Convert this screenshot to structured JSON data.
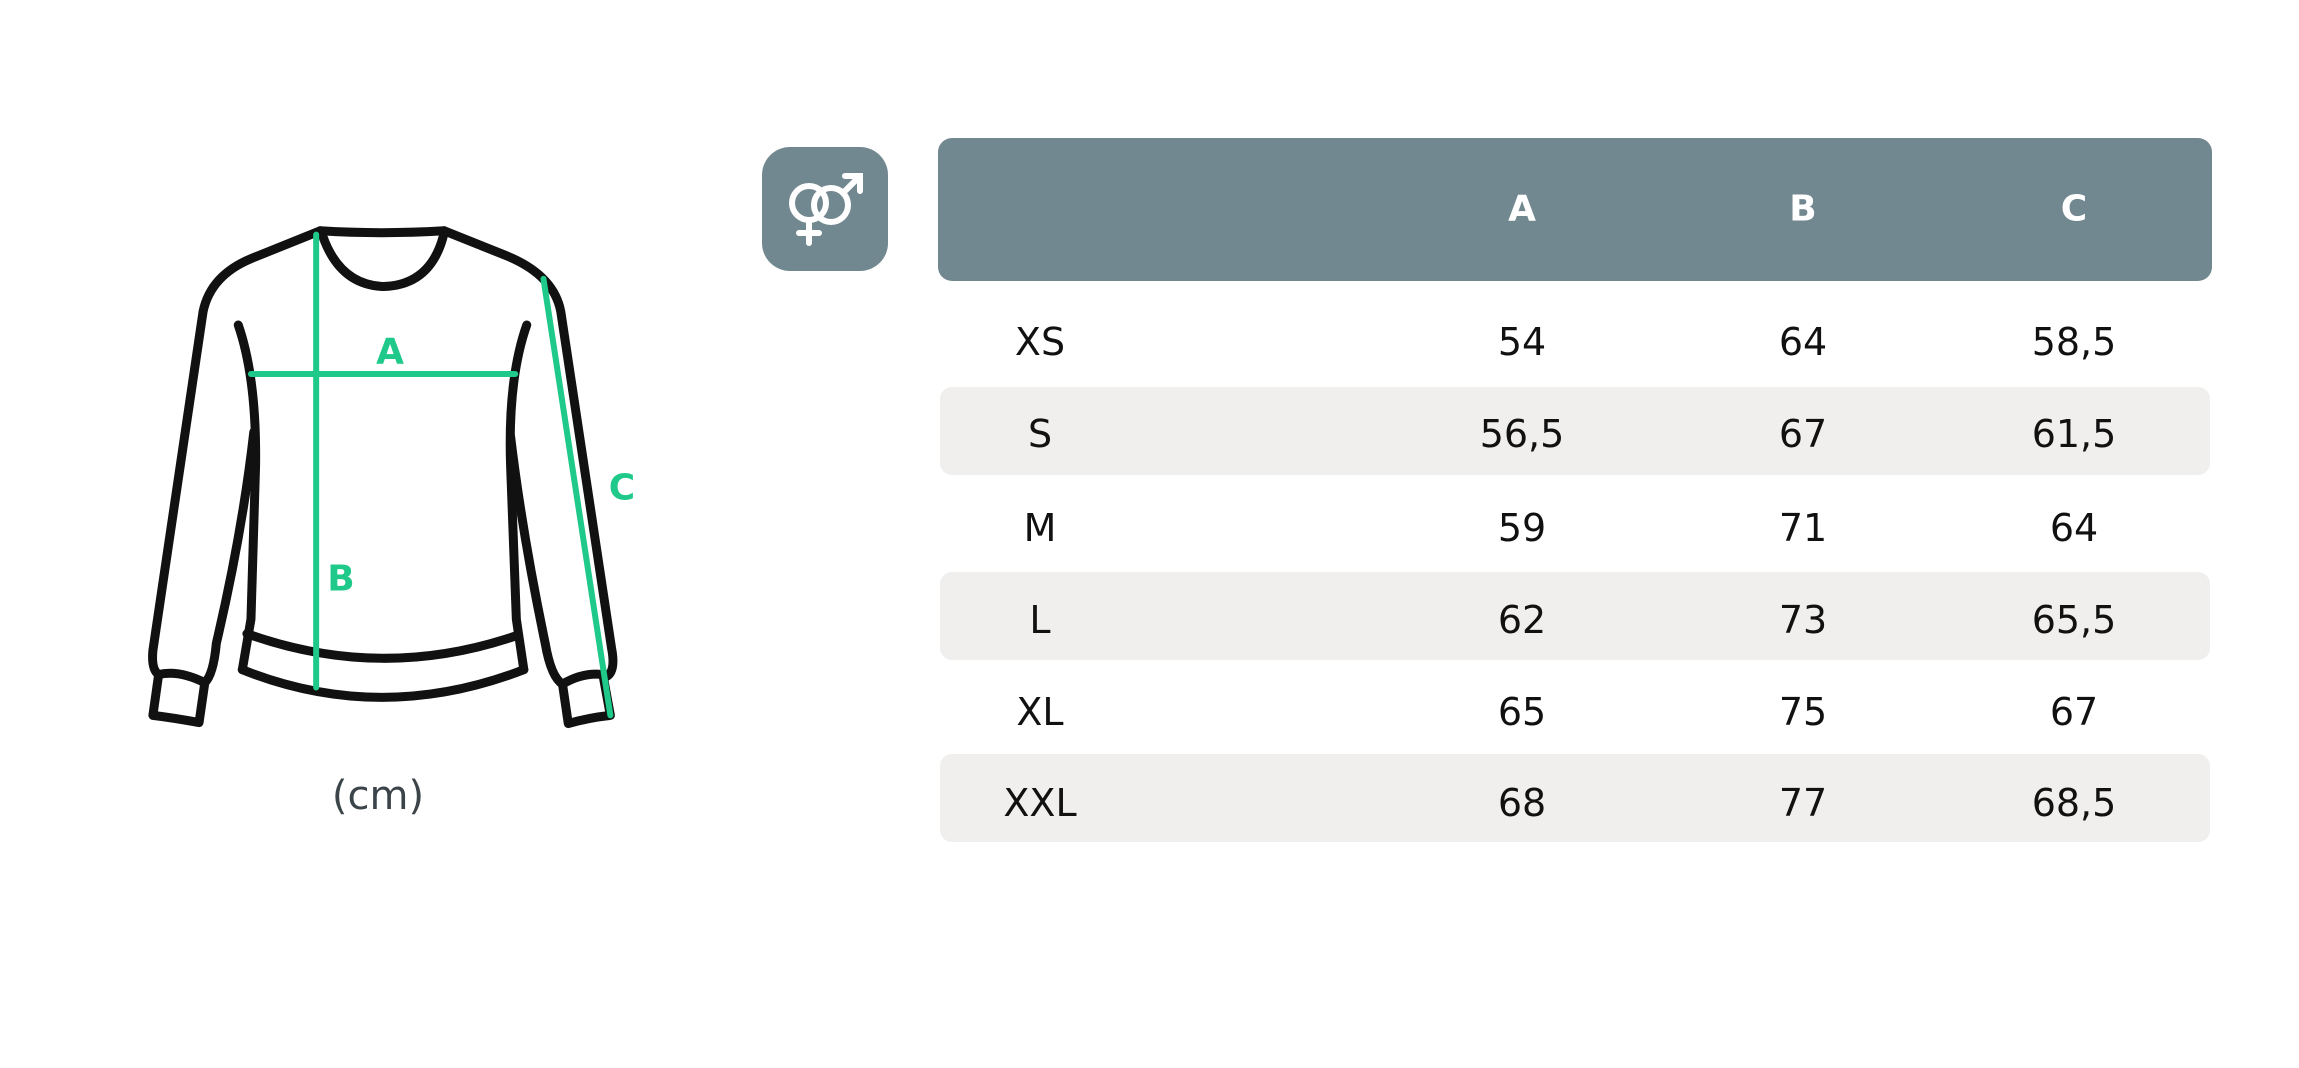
{
  "colors": {
    "accent_green": "#1fc98a",
    "header_bg": "#728890",
    "band_bg": "#f0efed",
    "outline": "#111111"
  },
  "diagram": {
    "labels": {
      "a": "A",
      "b": "B",
      "c": "C"
    },
    "unit": "(cm)"
  },
  "gender_icon": "unisex-male-female-icon",
  "table": {
    "columns": [
      "",
      "A",
      "B",
      "C"
    ],
    "rows": [
      {
        "size": "XS",
        "a": "54",
        "b": "64",
        "c": "58,5"
      },
      {
        "size": "S",
        "a": "56,5",
        "b": "67",
        "c": "61,5"
      },
      {
        "size": "M",
        "a": "59",
        "b": "71",
        "c": "64"
      },
      {
        "size": "L",
        "a": "62",
        "b": "73",
        "c": "65,5"
      },
      {
        "size": "XL",
        "a": "65",
        "b": "75",
        "c": "67"
      },
      {
        "size": "XXL",
        "a": "68",
        "b": "77",
        "c": "68,5"
      }
    ]
  }
}
